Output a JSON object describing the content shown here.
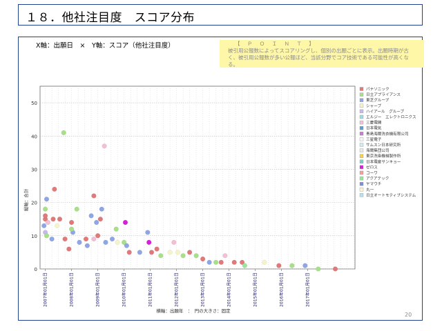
{
  "page": {
    "title": "１８．他社注目度　スコア分布",
    "axis_description": "X軸：出願日　×　Y軸：スコア（他社注目度）",
    "point_heading": "【 Ｐ Ｏ Ｉ Ｎ Ｔ 】",
    "point_text": "被引用公報数によってスコアリングし、個別の出願ごとに表示。出願時期が古く、被引用公報数が多い公報ほど、当該分野でコア技術である可能性が高くなる。",
    "page_number": "20"
  },
  "chart_data": {
    "type": "scatter",
    "ylabel": "縦軸：合計",
    "xlabel": "横軸：出願年　：　円の大きさ：固定",
    "y_ticks": [
      "0",
      "10",
      "20",
      "30",
      "40",
      "50"
    ],
    "ylim": [
      0,
      55
    ],
    "x_tick_labels": [
      "2007年01月01日",
      "2008年01月01日",
      "2009年01月01日",
      "2010年01月01日",
      "2011年01月01日",
      "2012年01月01日",
      "2013年01月01日",
      "2014年01月01日",
      "2015年01月01日",
      "2016年01月01日",
      "2017年01月01日"
    ],
    "xlim": [
      2006.8,
      2018.8
    ],
    "grid": true,
    "legend_position": "right",
    "series": [
      {
        "name": "パナソニック",
        "color": "#e07a7a"
      },
      {
        "name": "日立アプライアンス",
        "color": "#a8e08a"
      },
      {
        "name": "東芝グループ",
        "color": "#8fa6e6"
      },
      {
        "name": "シャープ",
        "color": "#f4f4c8"
      },
      {
        "name": "ハイアール　グループ",
        "color": "#c8b8f0"
      },
      {
        "name": "エルジー　エレクトロニクス",
        "color": "#9adce8"
      },
      {
        "name": "三菱電機",
        "color": "#f2c0d4"
      },
      {
        "name": "日本電気",
        "color": "#5aa0d0"
      },
      {
        "name": "青島海爾洗衣機有限公司",
        "color": "#c67bd6"
      },
      {
        "name": "三星電子",
        "color": "#f6f6f6"
      },
      {
        "name": "サムスン日本研究所",
        "color": "#d0ecf2"
      },
      {
        "name": "海爾集団公司",
        "color": "#e8e8e8"
      },
      {
        "name": "東京洗染機械製作所",
        "color": "#f2d24a"
      },
      {
        "name": "日本電産サンキョー",
        "color": "#7ad0c8"
      },
      {
        "name": "ゼロス",
        "color": "#d81ed8"
      },
      {
        "name": "コーワ",
        "color": "#f0a0a0"
      },
      {
        "name": "アクアテック",
        "color": "#9ae69a"
      },
      {
        "name": "ヤマウチ",
        "color": "#7e8ed6"
      },
      {
        "name": "丸一",
        "color": "#f8f8d0"
      },
      {
        "name": "日立オートモティブシステム",
        "color": "#b6e0f0"
      }
    ],
    "points": [
      {
        "x": 2007.05,
        "y": 21,
        "s": 2
      },
      {
        "x": 2007.0,
        "y": 18,
        "s": 1
      },
      {
        "x": 2007.0,
        "y": 15,
        "s": 0
      },
      {
        "x": 2007.1,
        "y": 14,
        "s": 6
      },
      {
        "x": 2006.95,
        "y": 13,
        "s": 2
      },
      {
        "x": 2007.0,
        "y": 11,
        "s": 4
      },
      {
        "x": 2007.05,
        "y": 10,
        "s": 1
      },
      {
        "x": 2007.0,
        "y": 16,
        "s": 0
      },
      {
        "x": 2007.35,
        "y": 24,
        "s": 0
      },
      {
        "x": 2007.3,
        "y": 15,
        "s": 0
      },
      {
        "x": 2007.25,
        "y": 9,
        "s": 2
      },
      {
        "x": 2007.45,
        "y": 13,
        "s": 3
      },
      {
        "x": 2007.55,
        "y": 15,
        "s": 0
      },
      {
        "x": 2007.7,
        "y": 41,
        "s": 1
      },
      {
        "x": 2007.75,
        "y": 9,
        "s": 0
      },
      {
        "x": 2007.9,
        "y": 6,
        "s": 0
      },
      {
        "x": 2008.05,
        "y": 11,
        "s": 2
      },
      {
        "x": 2008.0,
        "y": 12,
        "s": 1
      },
      {
        "x": 2008.0,
        "y": 14,
        "s": 0
      },
      {
        "x": 2008.2,
        "y": 18,
        "s": 1
      },
      {
        "x": 2008.3,
        "y": 8,
        "s": 2
      },
      {
        "x": 2008.55,
        "y": 9,
        "s": 0
      },
      {
        "x": 2008.6,
        "y": 7,
        "s": 2
      },
      {
        "x": 2008.75,
        "y": 16,
        "s": 2
      },
      {
        "x": 2008.85,
        "y": 9,
        "s": 6
      },
      {
        "x": 2008.95,
        "y": 14,
        "s": 2
      },
      {
        "x": 2008.85,
        "y": 22,
        "s": 0
      },
      {
        "x": 2009.0,
        "y": 10,
        "s": 0
      },
      {
        "x": 2009.1,
        "y": 15,
        "s": 0
      },
      {
        "x": 2009.15,
        "y": 18,
        "s": 2
      },
      {
        "x": 2009.25,
        "y": 37,
        "s": 6
      },
      {
        "x": 2009.3,
        "y": 8,
        "s": 2
      },
      {
        "x": 2009.55,
        "y": 9,
        "s": 2
      },
      {
        "x": 2009.7,
        "y": 12,
        "s": 1
      },
      {
        "x": 2009.75,
        "y": 8,
        "s": 3
      },
      {
        "x": 2010.05,
        "y": 14,
        "s": 14
      },
      {
        "x": 2010.0,
        "y": 8,
        "s": 1
      },
      {
        "x": 2010.1,
        "y": 7,
        "s": 2
      },
      {
        "x": 2010.2,
        "y": 5,
        "s": 0
      },
      {
        "x": 2010.6,
        "y": 5,
        "s": 2
      },
      {
        "x": 2010.9,
        "y": 11,
        "s": 2
      },
      {
        "x": 2010.95,
        "y": 8,
        "s": 14
      },
      {
        "x": 2011.05,
        "y": 5,
        "s": 0
      },
      {
        "x": 2011.25,
        "y": 6,
        "s": 0
      },
      {
        "x": 2011.4,
        "y": 4,
        "s": 1
      },
      {
        "x": 2011.75,
        "y": 5,
        "s": 3
      },
      {
        "x": 2011.9,
        "y": 8,
        "s": 6
      },
      {
        "x": 2012.05,
        "y": 5,
        "s": 3
      },
      {
        "x": 2012.25,
        "y": 4,
        "s": 1
      },
      {
        "x": 2012.5,
        "y": 5,
        "s": 0
      },
      {
        "x": 2012.75,
        "y": 4,
        "s": 1
      },
      {
        "x": 2013.0,
        "y": 3,
        "s": 0
      },
      {
        "x": 2013.25,
        "y": 2,
        "s": 2
      },
      {
        "x": 2013.5,
        "y": 2,
        "s": 1
      },
      {
        "x": 2013.7,
        "y": 2,
        "s": 0
      },
      {
        "x": 2013.85,
        "y": 4,
        "s": 6
      },
      {
        "x": 2014.2,
        "y": 2,
        "s": 0
      },
      {
        "x": 2014.5,
        "y": 2,
        "s": 0
      },
      {
        "x": 2014.6,
        "y": 1,
        "s": 16
      },
      {
        "x": 2015.35,
        "y": 2,
        "s": 3
      },
      {
        "x": 2015.9,
        "y": 1,
        "s": 0
      },
      {
        "x": 2016.4,
        "y": 1,
        "s": 1
      },
      {
        "x": 2016.9,
        "y": 1,
        "s": 2
      },
      {
        "x": 2017.4,
        "y": 0,
        "s": 1
      },
      {
        "x": 2018.05,
        "y": 0,
        "s": 0
      }
    ]
  }
}
